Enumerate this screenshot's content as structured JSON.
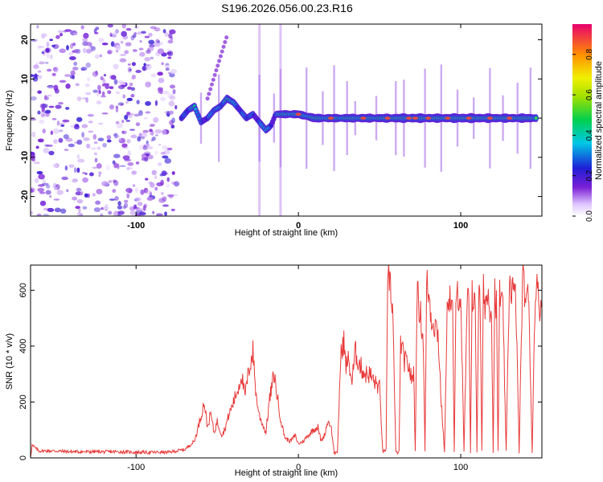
{
  "title": "S196.2026.056.00.23.R16",
  "chart_data": [
    {
      "type": "heatmap",
      "name": "spectrogram",
      "xlabel": "Height of straight line (km)",
      "ylabel": "Frequency (Hz)",
      "xlim": [
        -165,
        150
      ],
      "ylim": [
        -25,
        24
      ],
      "xticks": [
        -100,
        0,
        100
      ],
      "yticks": [
        -20,
        -10,
        0,
        10,
        20
      ],
      "colorbar": {
        "label": "Normalized spectral amplitude",
        "range": [
          0,
          0.95
        ],
        "ticks": [
          0.0,
          0.2,
          0.4,
          0.6,
          0.8
        ],
        "ticklabels": [
          "0.0",
          "0.2",
          "0.4",
          "0.6",
          "0.8"
        ]
      },
      "ridge": {
        "description": "dominant frequency vs height",
        "x": [
          -72,
          -68,
          -64,
          -60,
          -56,
          -52,
          -48,
          -44,
          -40,
          -36,
          -32,
          -28,
          -24,
          -20,
          -17,
          -14,
          -10,
          -6,
          0,
          10,
          20,
          30,
          40,
          50,
          60,
          70,
          80,
          90,
          100,
          110,
          120,
          130,
          140,
          147
        ],
        "y": [
          0,
          2,
          3,
          -1,
          0,
          2,
          3,
          5,
          4,
          2,
          0,
          1,
          -1,
          -3,
          -2,
          1,
          1,
          1,
          1,
          0,
          0,
          0,
          0,
          0,
          0,
          0,
          0,
          0,
          0,
          0,
          0,
          0,
          0,
          0
        ],
        "amplitude": [
          0.3,
          0.4,
          0.45,
          0.35,
          0.3,
          0.35,
          0.45,
          0.5,
          0.45,
          0.35,
          0.3,
          0.35,
          0.3,
          0.45,
          0.35,
          0.3,
          0.6,
          0.7,
          0.6,
          0.75,
          0.65,
          0.7,
          0.75,
          0.7,
          0.8,
          0.85,
          0.8,
          0.75,
          0.9,
          0.85,
          0.8,
          0.75,
          0.8,
          0.7
        ]
      },
      "noise_region": {
        "x_from": -165,
        "x_to": -75,
        "amplitude": 0.15
      }
    },
    {
      "type": "line",
      "name": "snr",
      "xlabel": "Height of straight line (km)",
      "ylabel": "SNR (10 * v/v)",
      "xlim": [
        -165,
        150
      ],
      "ylim": [
        0,
        690
      ],
      "xticks": [
        -100,
        0,
        100
      ],
      "yticks": [
        0,
        200,
        400,
        600
      ],
      "color": "#e83a3a",
      "series": [
        {
          "name": "SNR",
          "x": [
            -165,
            -164,
            -160,
            -150,
            -140,
            -130,
            -120,
            -110,
            -100,
            -90,
            -80,
            -70,
            -64,
            -60,
            -58,
            -56,
            -54,
            -52,
            -50,
            -47,
            -45,
            -43,
            -40,
            -37,
            -35,
            -33,
            -30,
            -28,
            -26,
            -24,
            -22,
            -20,
            -18,
            -15,
            -12,
            -10,
            -8,
            -5,
            -2,
            0,
            3,
            6,
            9,
            12,
            14,
            16,
            18,
            20,
            22,
            24,
            26,
            27,
            28,
            29,
            31,
            33,
            35,
            38,
            41,
            44,
            47,
            50,
            52,
            54,
            55,
            56,
            57,
            58,
            60,
            62,
            63,
            65,
            68,
            70,
            71,
            72,
            73,
            74,
            75,
            76,
            77,
            78,
            79,
            80,
            81,
            82,
            84,
            86,
            88,
            90,
            92,
            94,
            95,
            96,
            97,
            98,
            100,
            102,
            104,
            105,
            106,
            107,
            108,
            109,
            110,
            111,
            112,
            113,
            114,
            115,
            117,
            119,
            120,
            121,
            122,
            123,
            124,
            125,
            126,
            128,
            130,
            132,
            134,
            136,
            138,
            140,
            142,
            144,
            146,
            148,
            150
          ],
          "y": [
            5,
            45,
            25,
            25,
            22,
            22,
            22,
            22,
            20,
            20,
            20,
            30,
            60,
            150,
            200,
            110,
            160,
            90,
            130,
            80,
            110,
            150,
            200,
            250,
            300,
            220,
            330,
            380,
            220,
            150,
            120,
            90,
            200,
            300,
            180,
            110,
            70,
            60,
            80,
            50,
            60,
            80,
            100,
            110,
            60,
            80,
            130,
            120,
            20,
            15,
            350,
            400,
            420,
            330,
            350,
            270,
            380,
            330,
            300,
            300,
            270,
            250,
            20,
            30,
            580,
            660,
            590,
            560,
            20,
            20,
            420,
            350,
            330,
            270,
            320,
            20,
            580,
            560,
            520,
            480,
            400,
            20,
            620,
            600,
            550,
            500,
            480,
            450,
            200,
            20,
            600,
            560,
            520,
            20,
            500,
            600,
            580,
            20,
            560,
            540,
            20,
            600,
            560,
            520,
            20,
            580,
            550,
            20,
            600,
            560,
            580,
            520,
            20,
            600,
            550,
            20,
            600,
            560,
            520,
            20,
            640,
            600,
            560,
            20,
            640,
            580,
            560,
            20,
            640,
            560,
            540
          ]
        }
      ]
    }
  ]
}
